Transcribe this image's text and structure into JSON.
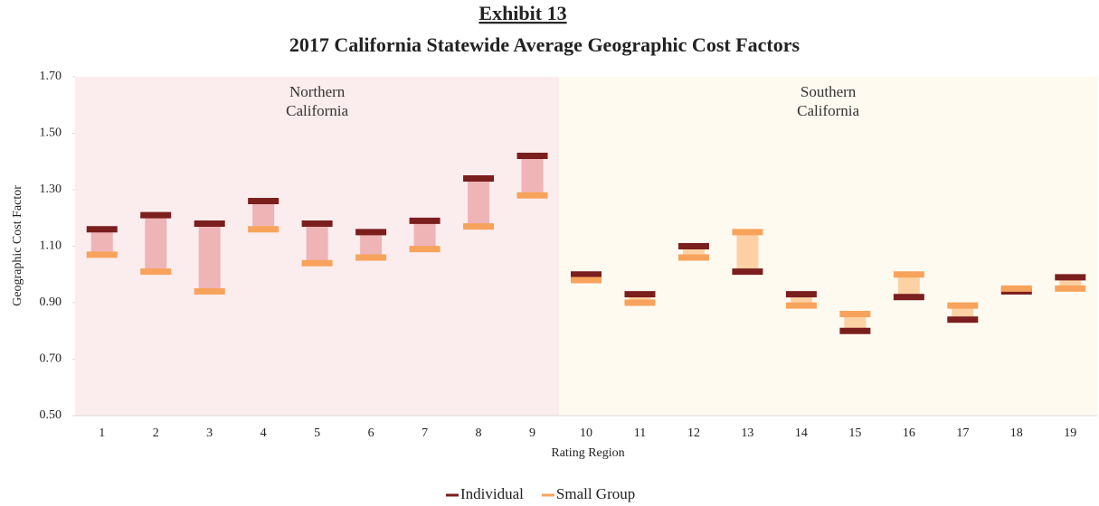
{
  "chart_data": {
    "type": "range",
    "title": "Exhibit 13",
    "subtitle": "2017 California Statewide Average Geographic Cost Factors",
    "x_label": "Rating Region",
    "y_label": "Geographic Cost Factor",
    "categories": [
      "1",
      "2",
      "3",
      "4",
      "5",
      "6",
      "7",
      "8",
      "9",
      "10",
      "11",
      "12",
      "13",
      "14",
      "15",
      "16",
      "17",
      "18",
      "19"
    ],
    "series": [
      {
        "name": "Individual",
        "color": "#7b1e1e",
        "values": [
          1.16,
          1.21,
          1.18,
          1.26,
          1.18,
          1.15,
          1.19,
          1.34,
          1.42,
          1.0,
          0.93,
          1.1,
          1.01,
          0.93,
          0.8,
          0.92,
          0.84,
          0.94,
          0.99
        ]
      },
      {
        "name": "Small Group",
        "color": "#f7a35c",
        "values": [
          1.07,
          1.01,
          0.94,
          1.16,
          1.04,
          1.06,
          1.09,
          1.17,
          1.28,
          0.98,
          0.9,
          1.06,
          1.15,
          0.89,
          0.86,
          1.0,
          0.89,
          0.95,
          0.95
        ]
      }
    ],
    "regions": [
      {
        "label": [
          "Northern",
          "California"
        ],
        "first": "1",
        "last": "9",
        "color": "#fbeced",
        "bar_color": "#efb4b6"
      },
      {
        "label": [
          "Southern",
          "California"
        ],
        "first": "10",
        "last": "19",
        "color": "#fffaf0",
        "bar_color": "#fdd1a3"
      }
    ],
    "ylim": [
      0.5,
      1.7
    ],
    "yticks": [
      {
        "value": 0.5,
        "label": "0.50"
      },
      {
        "value": 0.7,
        "label": "0.70"
      },
      {
        "value": 0.9,
        "label": "0.90"
      },
      {
        "value": 1.1,
        "label": "1.10"
      },
      {
        "value": 1.3,
        "label": "1.30"
      },
      {
        "value": 1.5,
        "label": "1.50"
      },
      {
        "value": 1.7,
        "label": "1.70"
      }
    ],
    "legend": "bottom"
  }
}
